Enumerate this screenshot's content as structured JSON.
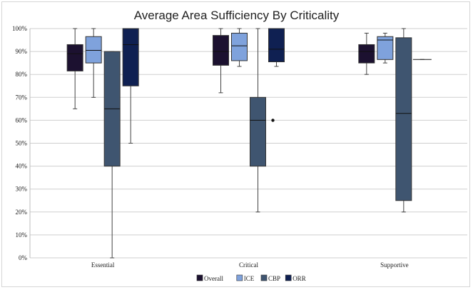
{
  "chart_data": {
    "type": "box",
    "title": "Average Area Sufficiency By Criticality",
    "xlabel": "",
    "ylabel": "",
    "ylim": [
      0,
      100
    ],
    "yticks": [
      "0%",
      "10%",
      "20%",
      "30%",
      "40%",
      "50%",
      "60%",
      "70%",
      "80%",
      "90%",
      "100%"
    ],
    "categories": [
      "Essential",
      "Critical",
      "Supportive"
    ],
    "grid": true,
    "legend_position": "bottom",
    "series": [
      {
        "name": "Overall",
        "color": "#1c1130",
        "boxes": [
          {
            "min": 65,
            "q1": 81.5,
            "median": 89,
            "q3": 93,
            "max": 100
          },
          {
            "min": 72,
            "q1": 84,
            "median": 90,
            "q3": 97,
            "max": 100
          },
          {
            "min": 80,
            "q1": 85,
            "median": 90,
            "q3": 93,
            "max": 98
          }
        ]
      },
      {
        "name": "ICE",
        "color": "#7fa2dc",
        "boxes": [
          {
            "min": 70,
            "q1": 85,
            "median": 90.5,
            "q3": 96.5,
            "max": 100
          },
          {
            "min": 83.5,
            "q1": 86,
            "median": 92.5,
            "q3": 98,
            "max": 100
          },
          {
            "min": 85,
            "q1": 86.5,
            "median": 95,
            "q3": 96.5,
            "max": 98
          }
        ]
      },
      {
        "name": "CBP",
        "color": "#3f5570",
        "boxes": [
          {
            "min": 0,
            "q1": 40,
            "median": 65,
            "q3": 90,
            "max": 90
          },
          {
            "min": 20,
            "q1": 40,
            "median": 60,
            "q3": 70,
            "max": 100,
            "outliers": [
              60
            ]
          },
          {
            "min": 20,
            "q1": 25,
            "median": 63,
            "q3": 96,
            "max": 100
          }
        ]
      },
      {
        "name": "ORR",
        "color": "#0f2052",
        "boxes": [
          {
            "min": 50,
            "q1": 75,
            "median": 93,
            "q3": 100,
            "max": 100
          },
          {
            "min": 83.5,
            "q1": 85.5,
            "median": 91,
            "q3": 100,
            "max": 100
          },
          {
            "min": 86.5,
            "q1": 86.5,
            "median": 86.5,
            "q3": 86.5,
            "max": 86.5
          }
        ]
      }
    ]
  }
}
